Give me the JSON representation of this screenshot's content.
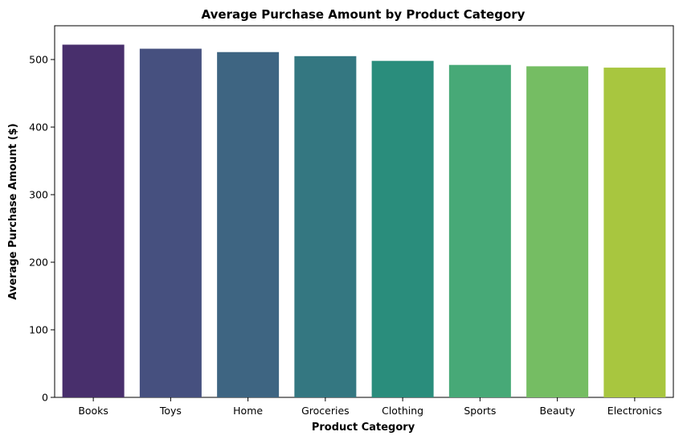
{
  "chart_data": {
    "type": "bar",
    "title": "Average Purchase Amount by Product Category",
    "xlabel": "Product Category",
    "ylabel": "Average Purchase Amount ($)",
    "categories": [
      "Books",
      "Toys",
      "Home",
      "Groceries",
      "Clothing",
      "Sports",
      "Beauty",
      "Electronics"
    ],
    "values": [
      522,
      516,
      511,
      505,
      498,
      492,
      490,
      488
    ],
    "colors": [
      "#482f6c",
      "#46507f",
      "#3e6582",
      "#347781",
      "#2a8d7c",
      "#47a977",
      "#75bd63",
      "#a8c63f"
    ],
    "ylim": [
      0,
      550
    ],
    "yticks": [
      0,
      100,
      200,
      300,
      400,
      500
    ],
    "grid": false,
    "legend": "none"
  }
}
